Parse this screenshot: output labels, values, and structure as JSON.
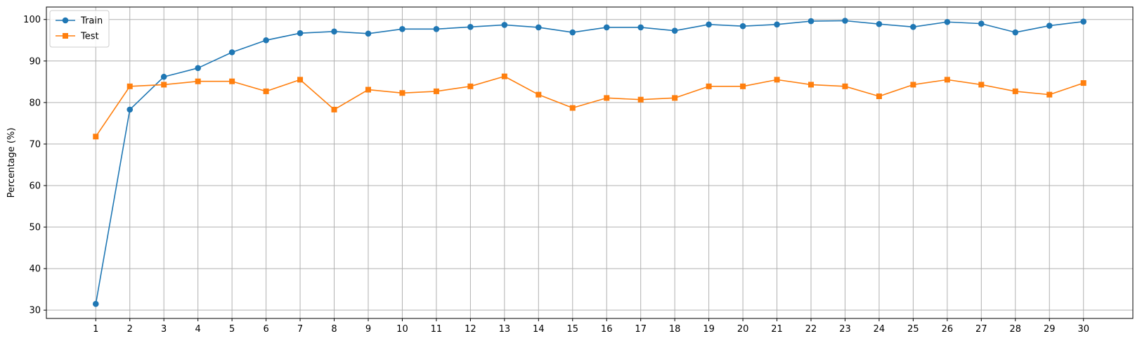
{
  "chart_data": {
    "type": "line",
    "title": "",
    "xlabel": "",
    "ylabel": "Percentage (%)",
    "x": [
      1,
      2,
      3,
      4,
      5,
      6,
      7,
      8,
      9,
      10,
      11,
      12,
      13,
      14,
      15,
      16,
      17,
      18,
      19,
      20,
      21,
      22,
      23,
      24,
      25,
      26,
      27,
      28,
      29,
      30
    ],
    "xlim": [
      -0.45,
      31.45
    ],
    "ylim": [
      28.0,
      103.0
    ],
    "yticks": [
      30,
      40,
      50,
      60,
      70,
      80,
      90,
      100
    ],
    "grid": true,
    "legend_position": "top-left",
    "series": [
      {
        "name": "Train",
        "color": "#1f77b4",
        "marker": "circle",
        "values": [
          31.5,
          78.3,
          86.2,
          88.3,
          92.1,
          95.0,
          96.7,
          97.1,
          96.6,
          97.7,
          97.7,
          98.2,
          98.7,
          98.1,
          96.9,
          98.1,
          98.1,
          97.3,
          98.8,
          98.4,
          98.8,
          99.6,
          99.7,
          98.9,
          98.2,
          99.4,
          99.0,
          96.9,
          98.5,
          99.5
        ]
      },
      {
        "name": "Test",
        "color": "#ff7f0e",
        "marker": "square",
        "values": [
          71.8,
          83.9,
          84.3,
          85.1,
          85.1,
          82.7,
          85.5,
          78.3,
          83.1,
          82.3,
          82.7,
          83.9,
          86.3,
          81.9,
          78.7,
          81.1,
          80.7,
          81.1,
          83.9,
          83.9,
          85.5,
          84.3,
          83.9,
          81.5,
          84.3,
          85.5,
          84.3,
          82.7,
          81.9,
          84.7
        ]
      }
    ]
  }
}
